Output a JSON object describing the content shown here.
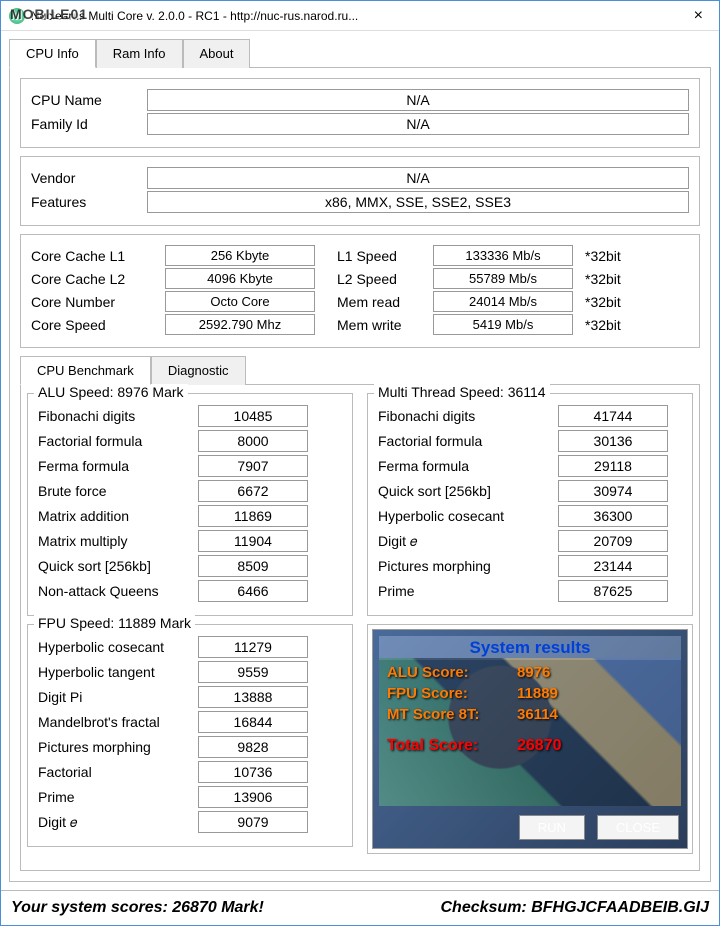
{
  "window": {
    "title": "Nuclearus Multi Core   v. 2.0.0    -    RC1    -    http://nuc-rus.narod.ru..."
  },
  "watermark": "MOBILE01",
  "tabs_top": {
    "t0": "CPU Info",
    "t1": "Ram Info",
    "t2": "About"
  },
  "cpu": {
    "name_label": "CPU Name",
    "name": "N/A",
    "family_label": "Family Id",
    "family": "N/A",
    "vendor_label": "Vendor",
    "vendor": "N/A",
    "features_label": "Features",
    "features": "x86, MMX, SSE, SSE2, SSE3",
    "l1_label": "Core Cache L1",
    "l1": "256 Kbyte",
    "l2_label": "Core Cache L2",
    "l2": "4096 Kbyte",
    "corenum_label": "Core Number",
    "corenum": "Octo Core",
    "corespd_label": "Core Speed",
    "corespd": "2592.790 Mhz",
    "l1spd_label": "L1 Speed",
    "l1spd": "133336 Mb/s",
    "l2spd_label": "L2 Speed",
    "l2spd": "55789 Mb/s",
    "memr_label": "Mem read",
    "memr": "24014 Mb/s",
    "memw_label": "Mem write",
    "memw": "5419 Mb/s",
    "bit": "*32bit"
  },
  "tabs_bottom": {
    "t0": "CPU Benchmark",
    "t1": "Diagnostic"
  },
  "alu": {
    "legend": "ALU Speed: 8976 Mark",
    "r0l": "Fibonachi digits",
    "r0v": "10485",
    "r1l": "Factorial formula",
    "r1v": "8000",
    "r2l": "Ferma formula",
    "r2v": "7907",
    "r3l": "Brute force",
    "r3v": "6672",
    "r4l": "Matrix addition",
    "r4v": "11869",
    "r5l": "Matrix multiply",
    "r5v": "11904",
    "r6l": "Quick sort [256kb]",
    "r6v": "8509",
    "r7l": "Non-attack Queens",
    "r7v": "6466"
  },
  "fpu": {
    "legend": "FPU Speed: 11889 Mark",
    "r0l": "Hyperbolic cosecant",
    "r0v": "11279",
    "r1l": "Hyperbolic tangent",
    "r1v": "9559",
    "r2l": "Digit Pi",
    "r2v": "13888",
    "r3l": "Mandelbrot's fractal",
    "r3v": "16844",
    "r4l": "Pictures morphing",
    "r4v": "9828",
    "r5l": "Factorial",
    "r5v": "10736",
    "r6l": "Prime",
    "r6v": "13906",
    "r7l": "Digit 𝑒",
    "r7v": "9079"
  },
  "mt": {
    "legend": "Multi Thread Speed: 36114",
    "r0l": "Fibonachi digits",
    "r0v": "41744",
    "r1l": "Factorial formula",
    "r1v": "30136",
    "r2l": "Ferma formula",
    "r2v": "29118",
    "r3l": "Quick sort [256kb]",
    "r3v": "30974",
    "r4l": "Hyperbolic cosecant",
    "r4v": "36300",
    "r5l": "Digit 𝑒",
    "r5v": "20709",
    "r6l": "Pictures morphing",
    "r6v": "23144",
    "r7l": "Prime",
    "r7v": "87625"
  },
  "results": {
    "title": "System results",
    "alu_l": "ALU Score:",
    "alu_v": "8976",
    "fpu_l": "FPU Score:",
    "fpu_v": "11889",
    "mt_l": "MT Score 8T:",
    "mt_v": "36114",
    "total_l": "Total Score:",
    "total_v": "26870",
    "run": "RUN",
    "close": "CLOSE"
  },
  "footer": {
    "score": "Your system scores: 26870 Mark!",
    "checksum": "Checksum: BFHGJCFAADBEIB.GIJ"
  }
}
